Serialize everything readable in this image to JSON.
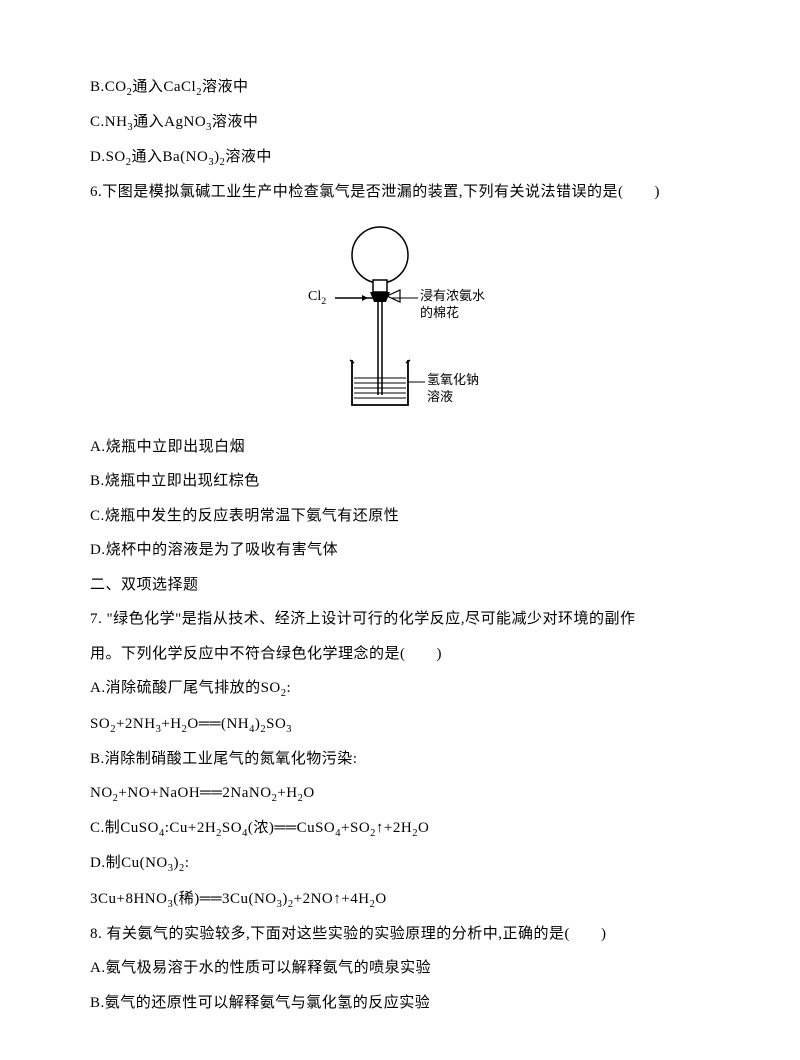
{
  "lines": {
    "opt5b": "B.CO₂通入CaCl₂溶液中",
    "opt5c": "C.NH₃通入AgNO₃溶液中",
    "opt5d": "D.SO₂通入Ba(NO₃)₂溶液中",
    "q6": "6.下图是模拟氯碱工业生产中检查氯气是否泄漏的装置,下列有关说法错误的是(　　)",
    "opt6a": "A.烧瓶中立即出现白烟",
    "opt6b": "B.烧瓶中立即出现红棕色",
    "opt6c": "C.烧瓶中发生的反应表明常温下氨气有还原性",
    "opt6d": "D.烧杯中的溶液是为了吸收有害气体",
    "section2": "二、双项选择题",
    "q7a": "7. \"绿色化学\"是指从技术、经济上设计可行的化学反应,尽可能减少对环境的副作",
    "q7b": "用。下列化学反应中不符合绿色化学理念的是(　　)",
    "opt7a_label": "A.消除硫酸厂尾气排放的SO₂:",
    "opt7a_eq": "SO₂+2NH₃+H₂O══(NH₄)₂SO₃",
    "opt7b_label": "B.消除制硝酸工业尾气的氮氧化物污染:",
    "opt7b_eq": "NO₂+NO+NaOH══2NaNO₂+H₂O",
    "opt7c": "C.制CuSO₄:Cu+2H₂SO₄(浓)══CuSO₄+SO₂↑+2H₂O",
    "opt7d_label": "D.制Cu(NO₃)₂:",
    "opt7d_eq": "3Cu+8HNO₃(稀)══3Cu(NO₃)₂+2NO↑+4H₂O",
    "q8": "8. 有关氨气的实验较多,下面对这些实验的实验原理的分析中,正确的是(　　)",
    "opt8a": "A.氨气极易溶于水的性质可以解释氨气的喷泉实验",
    "opt8b": "B.氨气的还原性可以解释氨气与氯化氢的反应实验"
  },
  "diagram": {
    "cl2_label": "Cl₂",
    "cotton_label_line1": "浸有浓氨水",
    "cotton_label_line2": "的棉花",
    "naoh_label_line1": "氢氧化钠",
    "naoh_label_line2": "溶液",
    "colors": {
      "stroke": "#000000",
      "fill_white": "#ffffff",
      "fill_black": "#000000"
    },
    "stroke_width": 1.5
  },
  "typography": {
    "body_fontsize": 15,
    "line_height": 2.3,
    "diagram_label_fontsize": 13,
    "text_color": "#000000",
    "background_color": "#ffffff"
  }
}
